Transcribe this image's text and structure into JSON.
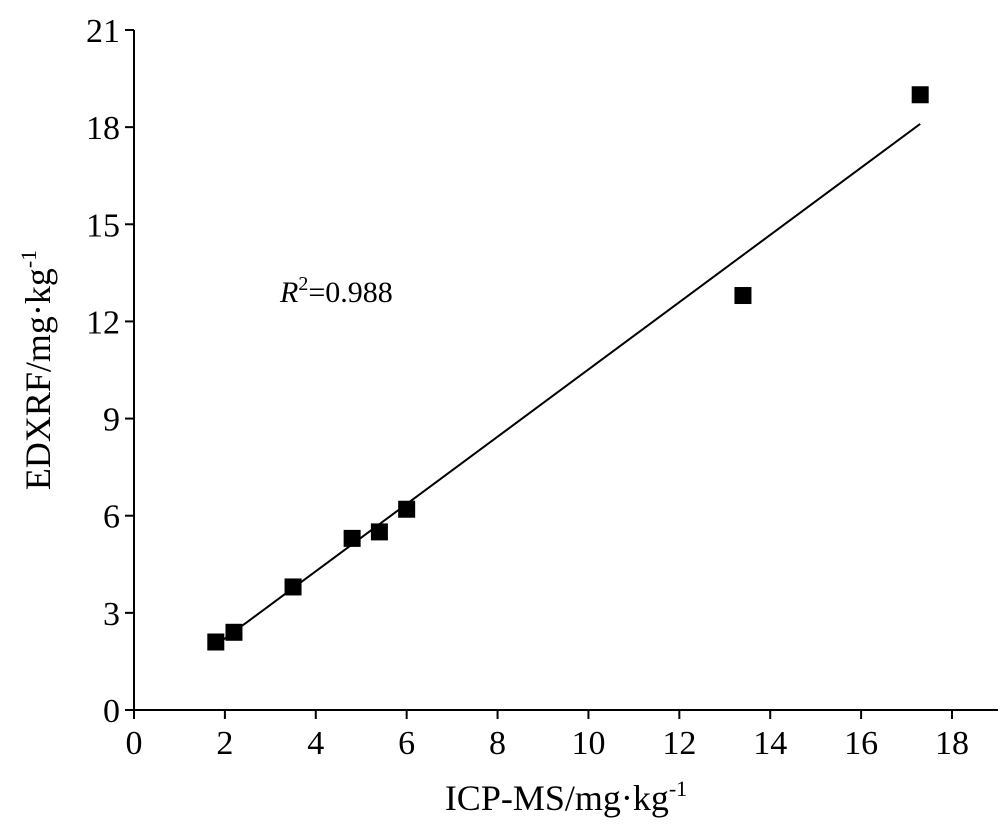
{
  "chart_data": {
    "type": "scatter",
    "title": "",
    "xlabel": "ICP-MS/mg·kg",
    "xlabel_sup": "-1",
    "ylabel": "EDXRF/mg·kg",
    "ylabel_sup": "-1",
    "xlim": [
      0,
      19
    ],
    "ylim": [
      0,
      21
    ],
    "xticks": [
      0,
      2,
      4,
      6,
      8,
      10,
      12,
      14,
      16,
      18
    ],
    "yticks": [
      0,
      3,
      6,
      9,
      12,
      15,
      18,
      21
    ],
    "grid": false,
    "legend": "none",
    "points": [
      {
        "x": 1.8,
        "y": 2.1
      },
      {
        "x": 2.2,
        "y": 2.4
      },
      {
        "x": 3.5,
        "y": 3.8
      },
      {
        "x": 4.8,
        "y": 5.3
      },
      {
        "x": 5.4,
        "y": 5.5
      },
      {
        "x": 6.0,
        "y": 6.2
      },
      {
        "x": 13.4,
        "y": 12.8
      },
      {
        "x": 17.3,
        "y": 19.0
      }
    ],
    "trendline": {
      "x": [
        1.8,
        17.3
      ],
      "y": [
        2.0,
        18.1
      ]
    },
    "annotation": {
      "variable": "R",
      "superscript": "2",
      "text": "=0.988"
    },
    "marker_color": "#000000"
  }
}
